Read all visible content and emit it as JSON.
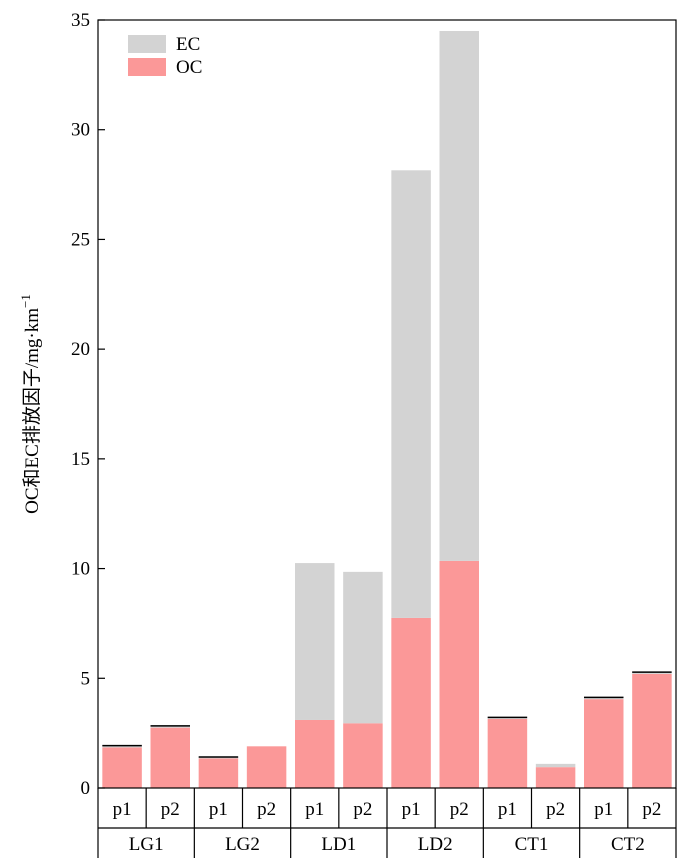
{
  "chart_data": {
    "type": "bar",
    "stacked": true,
    "title": "",
    "xlabel": "",
    "ylabel": "OC和EC排放因子/mg·km",
    "ylabel_superscript": "−1",
    "ylim": [
      0,
      35
    ],
    "yticks": [
      0,
      5,
      10,
      15,
      20,
      25,
      30,
      35
    ],
    "groups": [
      "LG1",
      "LG2",
      "LD1",
      "LD2",
      "CT1",
      "CT2"
    ],
    "subcategories": [
      "p1",
      "p2"
    ],
    "categories": [
      "LG1 p1",
      "LG1 p2",
      "LG2 p1",
      "LG2 p2",
      "LD1 p1",
      "LD1 p2",
      "LD2 p1",
      "LD2 p2",
      "CT1 p1",
      "CT1 p2",
      "CT2 p1",
      "CT2 p2"
    ],
    "series": [
      {
        "name": "OC",
        "color": "#fb9898",
        "values": [
          1.85,
          2.75,
          1.35,
          1.9,
          3.1,
          2.95,
          7.75,
          10.35,
          3.15,
          0.95,
          4.05,
          5.2
        ]
      },
      {
        "name": "EC",
        "color": "#d3d3d3",
        "values": [
          0.08,
          0.08,
          0.06,
          0.0,
          7.15,
          6.9,
          20.4,
          24.15,
          0.07,
          0.15,
          0.08,
          0.08
        ]
      }
    ],
    "legend": {
      "position": "top-left",
      "entries": [
        "EC",
        "OC"
      ]
    },
    "grid": false
  }
}
